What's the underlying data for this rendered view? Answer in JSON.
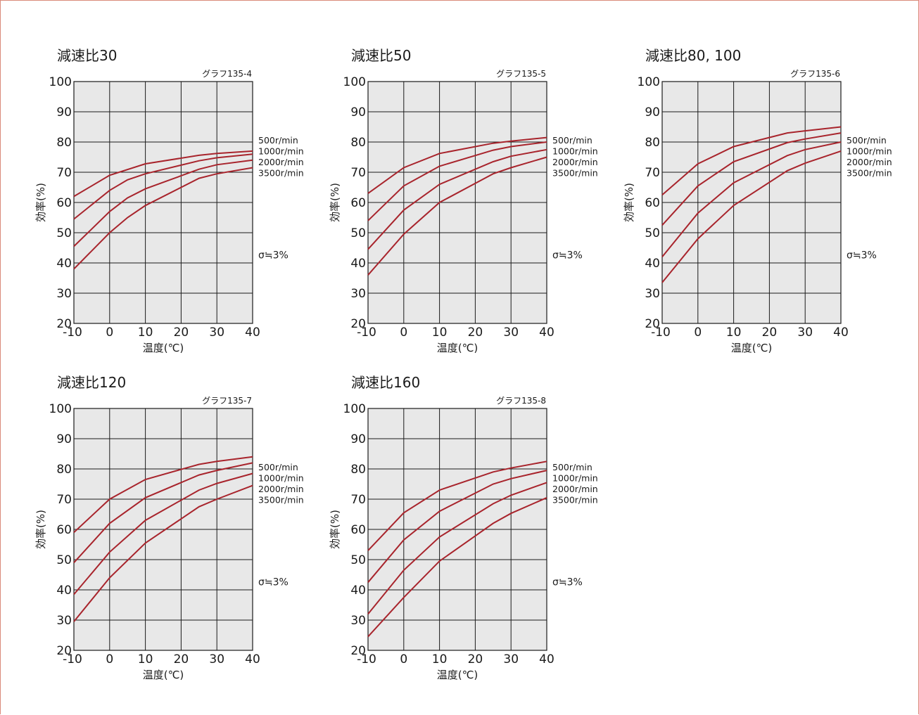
{
  "page": {
    "border_color": "#d98a7a",
    "background": "#ffffff"
  },
  "style": {
    "plot_background": "#e8e8e8",
    "line_color": "#a8242c",
    "grid_color": "#1a1a1a"
  },
  "chart_data": [
    {
      "type": "line",
      "title": "減速比30",
      "graph_code": "グラフ135-4",
      "xlabel": "温度(℃)",
      "ylabel": "効率(%)",
      "xlim": [
        -10,
        40
      ],
      "ylim": [
        20,
        100
      ],
      "xticks": [
        -10,
        0,
        10,
        20,
        30,
        40
      ],
      "yticks": [
        20,
        30,
        40,
        50,
        60,
        70,
        80,
        90,
        100
      ],
      "grid": true,
      "note": "σ≒3%",
      "series": [
        {
          "name": "500r/min",
          "x": [
            -10,
            0,
            10,
            25,
            30,
            40
          ],
          "y": [
            62,
            69,
            72.8,
            75.6,
            76.2,
            77
          ]
        },
        {
          "name": "1000r/min",
          "x": [
            -10,
            0,
            5,
            10,
            25,
            30,
            40
          ],
          "y": [
            54.5,
            64,
            67.5,
            69.5,
            73.8,
            74.8,
            76
          ]
        },
        {
          "name": "2000r/min",
          "x": [
            -10,
            0,
            5,
            10,
            25,
            30,
            40
          ],
          "y": [
            45.5,
            57,
            61.5,
            64.5,
            71,
            72.5,
            74
          ]
        },
        {
          "name": "3500r/min",
          "x": [
            -10,
            0,
            5,
            10,
            25,
            30,
            40
          ],
          "y": [
            38,
            50,
            55,
            59,
            68,
            69.5,
            71.5
          ]
        }
      ]
    },
    {
      "type": "line",
      "title": "減速比50",
      "graph_code": "グラフ135-5",
      "xlabel": "温度(℃)",
      "ylabel": "効率(%)",
      "xlim": [
        -10,
        40
      ],
      "ylim": [
        20,
        100
      ],
      "xticks": [
        -10,
        0,
        10,
        20,
        30,
        40
      ],
      "yticks": [
        20,
        30,
        40,
        50,
        60,
        70,
        80,
        90,
        100
      ],
      "grid": true,
      "note": "σ≒3%",
      "series": [
        {
          "name": "500r/min",
          "x": [
            -10,
            0,
            10,
            25,
            30,
            40
          ],
          "y": [
            63,
            71.5,
            76.2,
            79.6,
            80.3,
            81.5
          ]
        },
        {
          "name": "1000r/min",
          "x": [
            -10,
            0,
            10,
            25,
            30,
            40
          ],
          "y": [
            54,
            65.5,
            72,
            77.3,
            78.5,
            80
          ]
        },
        {
          "name": "2000r/min",
          "x": [
            -10,
            0,
            10,
            25,
            30,
            40
          ],
          "y": [
            44.5,
            57.5,
            66,
            73.5,
            75.3,
            77.5
          ]
        },
        {
          "name": "3500r/min",
          "x": [
            -10,
            0,
            10,
            25,
            30,
            40
          ],
          "y": [
            36,
            49.5,
            60,
            69.5,
            71.5,
            75
          ]
        }
      ]
    },
    {
      "type": "line",
      "title": "減速比80, 100",
      "graph_code": "グラフ135-6",
      "xlabel": "温度(℃)",
      "ylabel": "効率(%)",
      "xlim": [
        -10,
        40
      ],
      "ylim": [
        20,
        100
      ],
      "xticks": [
        -10,
        0,
        10,
        20,
        30,
        40
      ],
      "yticks": [
        20,
        30,
        40,
        50,
        60,
        70,
        80,
        90,
        100
      ],
      "grid": true,
      "note": "σ≒3%",
      "series": [
        {
          "name": "500r/min",
          "x": [
            -10,
            0,
            10,
            25,
            30,
            40
          ],
          "y": [
            62.5,
            72.8,
            78.5,
            83,
            83.7,
            85
          ]
        },
        {
          "name": "1000r/min",
          "x": [
            -10,
            0,
            10,
            25,
            30,
            40
          ],
          "y": [
            52.5,
            65.5,
            73.5,
            79.8,
            81,
            83
          ]
        },
        {
          "name": "2000r/min",
          "x": [
            -10,
            0,
            10,
            25,
            30,
            40
          ],
          "y": [
            42,
            56.5,
            66.5,
            75.5,
            77.5,
            80
          ]
        },
        {
          "name": "3500r/min",
          "x": [
            -10,
            0,
            10,
            25,
            30,
            40
          ],
          "y": [
            33.5,
            48,
            59,
            70.5,
            73,
            77
          ]
        }
      ]
    },
    {
      "type": "line",
      "title": "減速比120",
      "graph_code": "グラフ135-7",
      "xlabel": "温度(℃)",
      "ylabel": "効率(%)",
      "xlim": [
        -10,
        40
      ],
      "ylim": [
        20,
        100
      ],
      "xticks": [
        -10,
        0,
        10,
        20,
        30,
        40
      ],
      "yticks": [
        20,
        30,
        40,
        50,
        60,
        70,
        80,
        90,
        100
      ],
      "grid": true,
      "note": "σ≒3%",
      "series": [
        {
          "name": "500r/min",
          "x": [
            -10,
            0,
            10,
            25,
            30,
            40
          ],
          "y": [
            59,
            70,
            76.5,
            81.5,
            82.5,
            84
          ]
        },
        {
          "name": "1000r/min",
          "x": [
            -10,
            0,
            10,
            25,
            30,
            40
          ],
          "y": [
            49,
            62,
            70.5,
            78,
            79.5,
            82
          ]
        },
        {
          "name": "2000r/min",
          "x": [
            -10,
            0,
            10,
            25,
            30,
            40
          ],
          "y": [
            38.5,
            52.5,
            63,
            73,
            75.2,
            78.5
          ]
        },
        {
          "name": "3500r/min",
          "x": [
            -10,
            0,
            10,
            25,
            30,
            40
          ],
          "y": [
            29.5,
            44,
            55.5,
            67.5,
            70,
            74.5
          ]
        }
      ]
    },
    {
      "type": "line",
      "title": "減速比160",
      "graph_code": "グラフ135-8",
      "xlabel": "温度(℃)",
      "ylabel": "効率(%)",
      "xlim": [
        -10,
        40
      ],
      "ylim": [
        20,
        100
      ],
      "xticks": [
        -10,
        0,
        10,
        20,
        30,
        40
      ],
      "yticks": [
        20,
        30,
        40,
        50,
        60,
        70,
        80,
        90,
        100
      ],
      "grid": true,
      "note": "σ≒3%",
      "series": [
        {
          "name": "500r/min",
          "x": [
            -10,
            0,
            10,
            25,
            30,
            40
          ],
          "y": [
            53,
            65.5,
            73,
            79,
            80.3,
            82.5
          ]
        },
        {
          "name": "1000r/min",
          "x": [
            -10,
            0,
            10,
            25,
            30,
            40
          ],
          "y": [
            42.5,
            56.5,
            66,
            75,
            76.8,
            79.5
          ]
        },
        {
          "name": "2000r/min",
          "x": [
            -10,
            0,
            10,
            25,
            30,
            40
          ],
          "y": [
            32,
            46.5,
            57.5,
            68.5,
            71.3,
            75.5
          ]
        },
        {
          "name": "3500r/min",
          "x": [
            -10,
            0,
            10,
            25,
            30,
            40
          ],
          "y": [
            24.5,
            37.5,
            49.5,
            62,
            65.3,
            70.5
          ]
        }
      ]
    }
  ]
}
